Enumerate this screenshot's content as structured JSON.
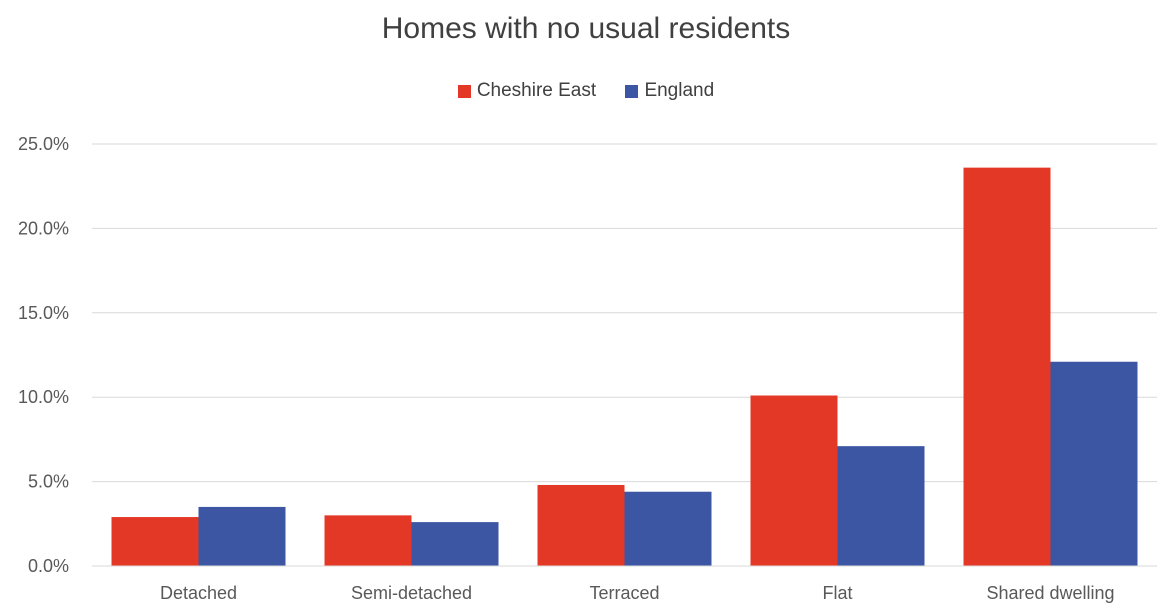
{
  "chart_data": {
    "type": "bar",
    "title": "Homes with no usual residents",
    "xlabel": "",
    "ylabel": "",
    "categories": [
      "Detached",
      "Semi-detached",
      "Terraced",
      "Flat",
      "Shared dwelling"
    ],
    "series": [
      {
        "name": "Cheshire East",
        "color": "#E43827",
        "values": [
          2.9,
          3.0,
          4.8,
          10.1,
          23.6
        ]
      },
      {
        "name": "England",
        "color": "#3C56A3",
        "values": [
          3.5,
          2.6,
          4.4,
          7.1,
          12.1
        ]
      }
    ],
    "ylim": [
      0,
      25
    ],
    "yticks": [
      0,
      5,
      10,
      15,
      20,
      25
    ],
    "ytick_labels": [
      "0.0%",
      "5.0%",
      "10.0%",
      "15.0%",
      "20.0%",
      "25.0%"
    ],
    "grid": true,
    "legend_position": "top"
  }
}
